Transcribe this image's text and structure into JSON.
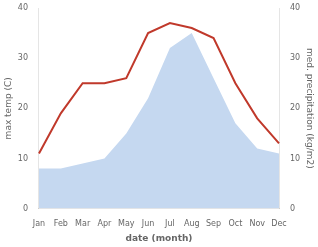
{
  "chart_data": {
    "type": "line",
    "xlabel": "date (month)",
    "ylabel": "max temp (C)",
    "y2label": "med. precipitation (kg/m2)",
    "categories": [
      "Jan",
      "Feb",
      "Mar",
      "Apr",
      "May",
      "Jun",
      "Jul",
      "Aug",
      "Sep",
      "Oct",
      "Nov",
      "Dec"
    ],
    "series": [
      {
        "type": "area",
        "color": "#c5d8f0",
        "values": [
          8,
          8,
          9,
          10,
          15,
          22,
          32,
          35,
          26,
          17,
          12,
          11
        ]
      },
      {
        "type": "line",
        "color": "#c0392b",
        "values": [
          11,
          19,
          25,
          25,
          26,
          35,
          37,
          36,
          34,
          25,
          18,
          13
        ]
      }
    ],
    "ylim": [
      0,
      40
    ],
    "yticks": [
      0,
      10,
      20,
      30,
      40
    ],
    "y2lim": [
      0,
      40
    ],
    "y2ticks": [
      0,
      10,
      20,
      30,
      40
    ],
    "grid": false
  }
}
